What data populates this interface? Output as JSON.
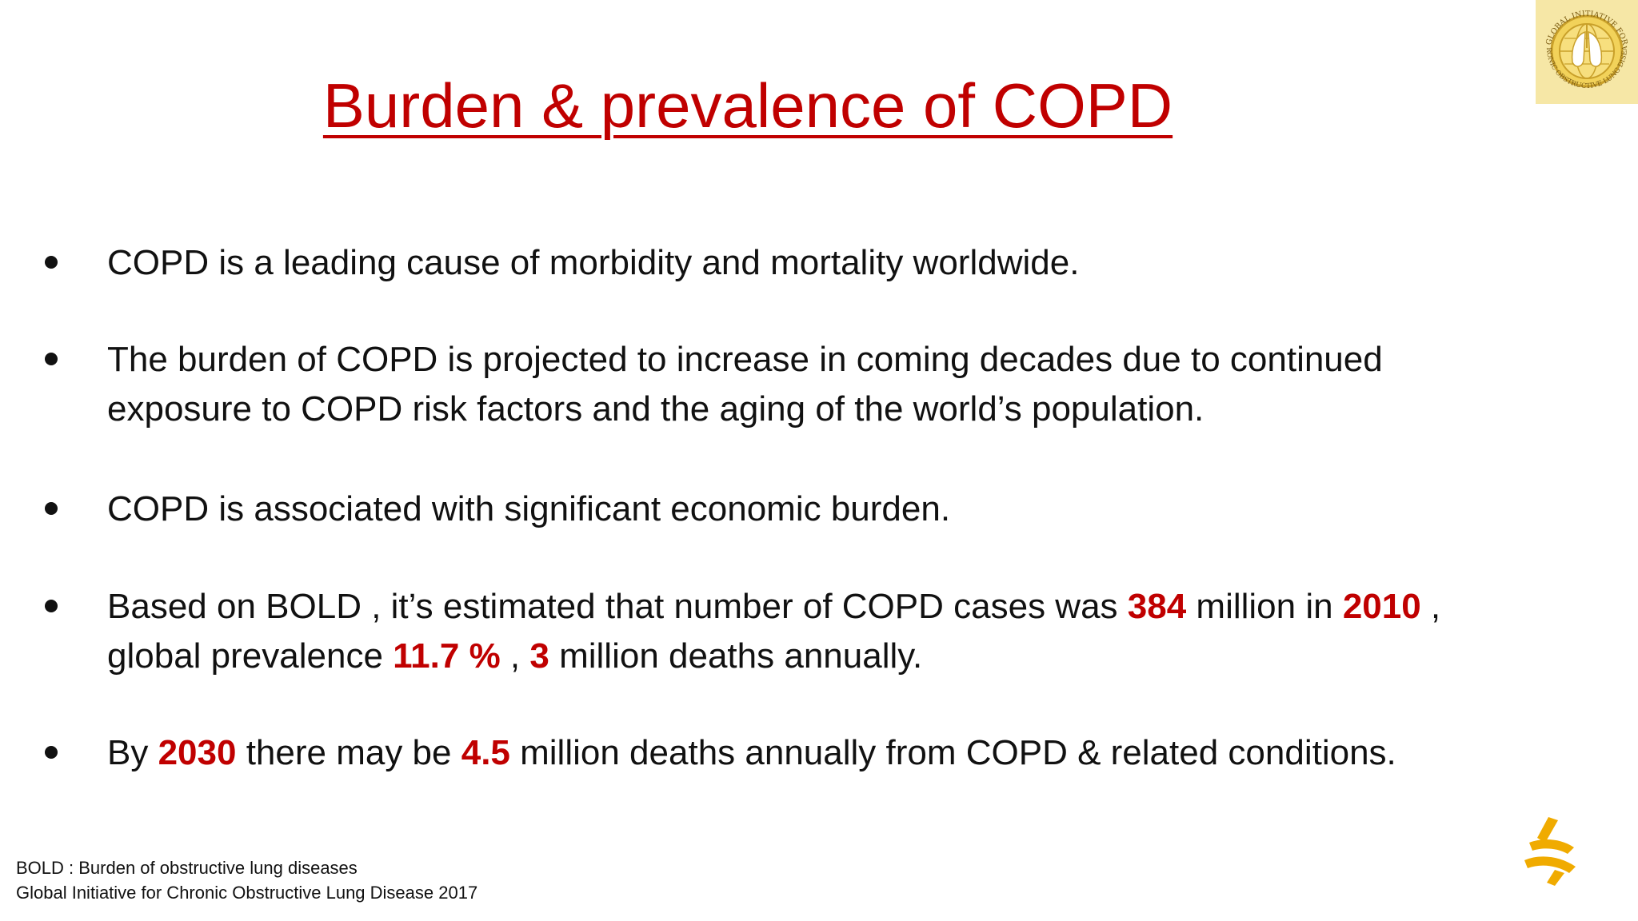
{
  "slide": {
    "title": "Burden & prevalence of COPD",
    "bullets": [
      {
        "lines": [
          [
            {
              "text": "COPD is a leading cause of morbidity and mortality worldwide."
            }
          ]
        ]
      },
      {
        "lines": [
          [
            {
              "text": "The burden of COPD is projected to increase in coming decades due to continued"
            }
          ],
          [
            {
              "text": "exposure to COPD risk factors and the aging of the world’s population."
            }
          ]
        ]
      },
      {
        "lines": [
          [
            {
              "text": "COPD is associated with significant economic burden."
            }
          ]
        ]
      },
      {
        "lines": [
          [
            {
              "text": "Based on BOLD , it’s estimated that number of COPD cases was "
            },
            {
              "text": "384",
              "hl": true
            },
            {
              "text": " million in "
            },
            {
              "text": "2010",
              "hl": true
            },
            {
              "text": " ,"
            }
          ],
          [
            {
              "text": "global prevalence "
            },
            {
              "text": "11.7 %",
              "hl": true
            },
            {
              "text": " , "
            },
            {
              "text": "3",
              "hl": true
            },
            {
              "text": " million deaths annually."
            }
          ]
        ]
      },
      {
        "lines": [
          [
            {
              "text": "By "
            },
            {
              "text": "2030",
              "hl": true
            },
            {
              "text": " there may be "
            },
            {
              "text": "4.5",
              "hl": true
            },
            {
              "text": " million deaths annually from COPD & related conditions."
            }
          ]
        ]
      }
    ],
    "footnotes": [
      "BOLD : Burden of obstructive lung diseases",
      "Global Initiative for Chronic Obstructive Lung Disease 2017"
    ]
  },
  "logos": {
    "gold": {
      "icon": "gold-lungs-globe-logo",
      "text_top": "GLOBAL INITIATIVE FOR",
      "text_bottom": "CHRONIC OBSTRUCTIVE LUNG DISEASE"
    },
    "astrazeneca": {
      "icon": "astrazeneca-logo"
    }
  },
  "colors": {
    "title": "#c00000",
    "highlight": "#c00000",
    "text": "#111111",
    "gold_bg": "#f6e7a6",
    "gold_ring": "#c9a02a",
    "az_gold": "#f0ab00"
  }
}
